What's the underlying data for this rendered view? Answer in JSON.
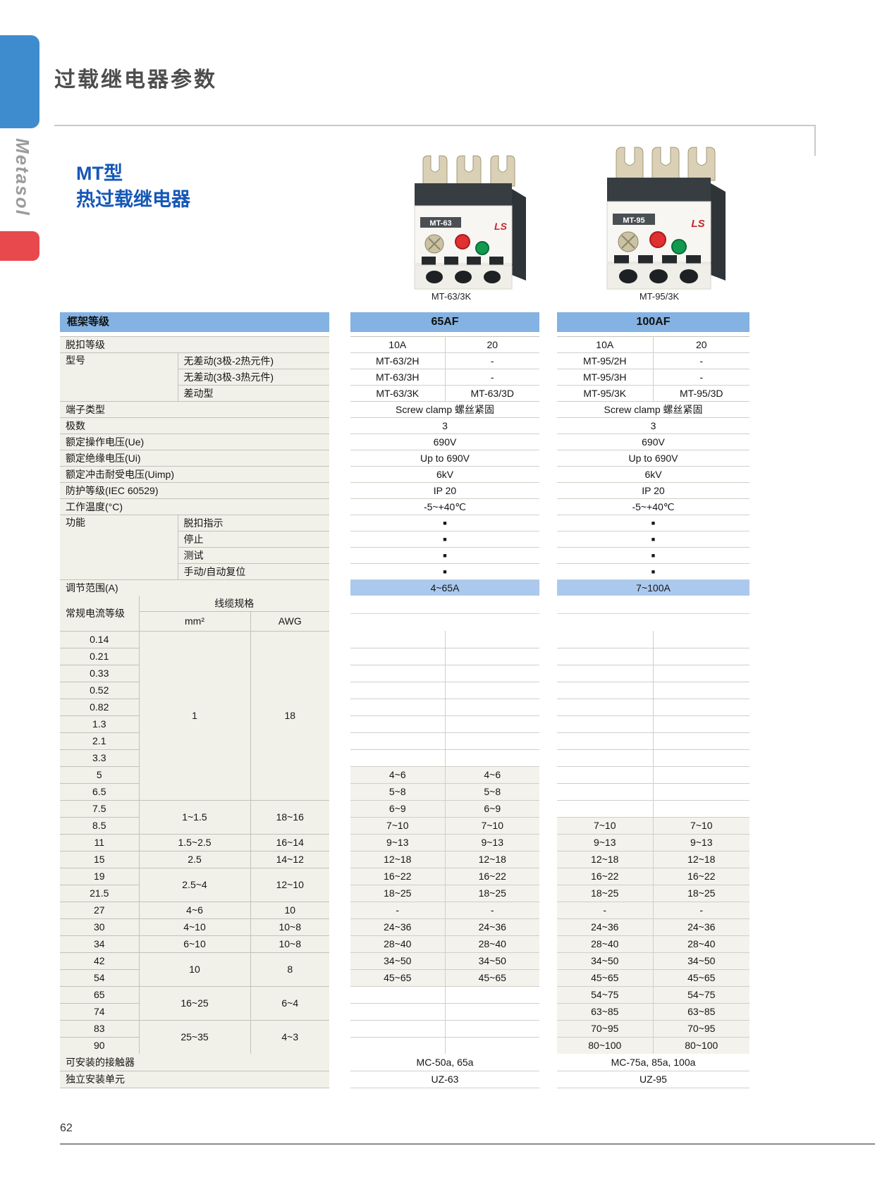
{
  "page": {
    "title": "过载继电器参数",
    "brand": "Metasol",
    "heading_line1": "MT型",
    "heading_line2": "热过载继电器",
    "page_number": "62"
  },
  "colors": {
    "accent_blue_chip": "#3E8CCE",
    "accent_red_chip": "#E8494D",
    "heading_blue": "#1557B8",
    "table_header_blue": "#84B2E2",
    "range_band_blue": "#ABC9EE",
    "label_cell_bg": "#F2F1E9"
  },
  "products": [
    {
      "label": "MT-63",
      "logo": "LS",
      "caption": "MT-63/3K"
    },
    {
      "label": "MT-95",
      "logo": "LS",
      "caption": "MT-95/3K"
    }
  ],
  "table": {
    "frame_header_label": "框架等级",
    "spec_rows": [
      {
        "label": "脱扣等级"
      },
      {
        "label": "型号",
        "sub": "无差动(3极-2热元件)"
      },
      {
        "sub": "无差动(3极-3热元件)"
      },
      {
        "sub": "差动型"
      },
      {
        "label": "端子类型"
      },
      {
        "label": "极数"
      },
      {
        "label": "额定操作电压(Ue)"
      },
      {
        "label": "额定绝缘电压(Ui)"
      },
      {
        "label": "额定冲击耐受电压(Uimp)"
      },
      {
        "label": "防护等级(IEC 60529)"
      },
      {
        "label": "工作温度(°C)"
      },
      {
        "label": "功能",
        "sub": "脱扣指示"
      },
      {
        "sub": "停止"
      },
      {
        "sub": "测试"
      },
      {
        "sub": "手动/自动复位"
      },
      {
        "label": "调节范围(A)"
      }
    ],
    "bottom_rows": [
      {
        "label": "可安装的接触器"
      },
      {
        "label": "独立安装单元"
      }
    ],
    "frames": [
      {
        "name": "65AF",
        "trip_class": [
          "10A",
          "20"
        ],
        "models": [
          [
            "MT-63/2H",
            "-"
          ],
          [
            "MT-63/3H",
            "-"
          ],
          [
            "MT-63/3K",
            "MT-63/3D"
          ]
        ],
        "terminal": "Screw clamp 螺丝紧固",
        "poles": "3",
        "ue": "690V",
        "ui": "Up to 690V",
        "uimp": "6kV",
        "ip": "IP 20",
        "temp": "-5~+40℃",
        "functions": [
          "■",
          "■",
          "■",
          "■"
        ],
        "range": "4~65A",
        "contactors": "MC-50a, 65a",
        "unit": "UZ-63"
      },
      {
        "name": "100AF",
        "trip_class": [
          "10A",
          "20"
        ],
        "models": [
          [
            "MT-95/2H",
            "-"
          ],
          [
            "MT-95/3H",
            "-"
          ],
          [
            "MT-95/3K",
            "MT-95/3D"
          ]
        ],
        "terminal": "Screw clamp 螺丝紧固",
        "poles": "3",
        "ue": "690V",
        "ui": "Up to 690V",
        "uimp": "6kV",
        "ip": "IP 20",
        "temp": "-5~+40℃",
        "functions": [
          "■",
          "■",
          "■",
          "■"
        ],
        "range": "7~100A",
        "contactors": "MC-75a, 85a, 100a",
        "unit": "UZ-95"
      }
    ],
    "cable": {
      "col_headers": {
        "current": "常规电流等级",
        "spec": "线缆规格",
        "mm2": "mm²",
        "awg": "AWG"
      },
      "rows": [
        {
          "current": "0.14",
          "mm2": "1",
          "awg": "18",
          "group_span": 10
        },
        {
          "current": "0.21"
        },
        {
          "current": "0.33"
        },
        {
          "current": "0.52"
        },
        {
          "current": "0.82"
        },
        {
          "current": "1.3"
        },
        {
          "current": "2.1"
        },
        {
          "current": "3.3"
        },
        {
          "current": "5",
          "v65": [
            "4~6",
            "4~6"
          ]
        },
        {
          "current": "6.5",
          "v65": [
            "5~8",
            "5~8"
          ]
        },
        {
          "current": "7.5",
          "mm2": "1~1.5",
          "awg": "18~16",
          "group_span": 2,
          "v65": [
            "6~9",
            "6~9"
          ]
        },
        {
          "current": "8.5",
          "v65": [
            "7~10",
            "7~10"
          ],
          "v100": [
            "7~10",
            "7~10"
          ]
        },
        {
          "current": "11",
          "mm2": "1.5~2.5",
          "awg": "16~14",
          "group_span": 1,
          "v65": [
            "9~13",
            "9~13"
          ],
          "v100": [
            "9~13",
            "9~13"
          ]
        },
        {
          "current": "15",
          "mm2": "2.5",
          "awg": "14~12",
          "group_span": 1,
          "v65": [
            "12~18",
            "12~18"
          ],
          "v100": [
            "12~18",
            "12~18"
          ]
        },
        {
          "current": "19",
          "mm2": "2.5~4",
          "awg": "12~10",
          "group_span": 2,
          "v65": [
            "16~22",
            "16~22"
          ],
          "v100": [
            "16~22",
            "16~22"
          ]
        },
        {
          "current": "21.5",
          "v65": [
            "18~25",
            "18~25"
          ],
          "v100": [
            "18~25",
            "18~25"
          ]
        },
        {
          "current": "27",
          "mm2": "4~6",
          "awg": "10",
          "group_span": 1,
          "v65": [
            "-",
            "-"
          ],
          "v100": [
            "-",
            "-"
          ]
        },
        {
          "current": "30",
          "mm2": "4~10",
          "awg": "10~8",
          "group_span": 1,
          "v65": [
            "24~36",
            "24~36"
          ],
          "v100": [
            "24~36",
            "24~36"
          ]
        },
        {
          "current": "34",
          "mm2": "6~10",
          "awg": "10~8",
          "group_span": 1,
          "v65": [
            "28~40",
            "28~40"
          ],
          "v100": [
            "28~40",
            "28~40"
          ]
        },
        {
          "current": "42",
          "mm2": "10",
          "awg": "8",
          "group_span": 2,
          "v65": [
            "34~50",
            "34~50"
          ],
          "v100": [
            "34~50",
            "34~50"
          ]
        },
        {
          "current": "54",
          "v65": [
            "45~65",
            "45~65"
          ],
          "v100": [
            "45~65",
            "45~65"
          ]
        },
        {
          "current": "65",
          "mm2": "16~25",
          "awg": "6~4",
          "group_span": 2,
          "v100": [
            "54~75",
            "54~75"
          ]
        },
        {
          "current": "74",
          "v100": [
            "63~85",
            "63~85"
          ]
        },
        {
          "current": "83",
          "mm2": "25~35",
          "awg": "4~3",
          "group_span": 2,
          "v100": [
            "70~95",
            "70~95"
          ]
        },
        {
          "current": "90",
          "v100": [
            "80~100",
            "80~100"
          ]
        }
      ]
    }
  }
}
